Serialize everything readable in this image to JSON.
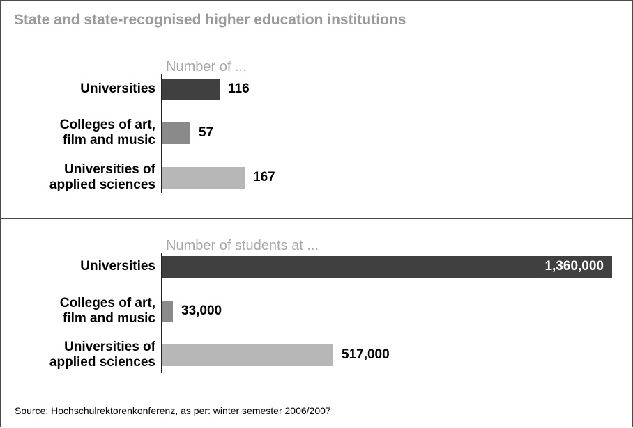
{
  "title": "State and state-recognised higher education institutions",
  "source": "Source: Hochschulrektorenkonferenz, as per: winter semester 2006/2007",
  "colors": {
    "universities": "#404040",
    "colleges": "#8a8a8a",
    "applied": "#b7b7b7",
    "subtitle": "#a8a8a8",
    "title": "#9a9a9a"
  },
  "chart_data": [
    {
      "type": "bar",
      "orientation": "horizontal",
      "title": "Number of ...",
      "categories": [
        "Universities",
        "Colleges of art,\nfilm and music",
        "Universities of\napplied sciences"
      ],
      "values": [
        116,
        57,
        167
      ],
      "value_labels": [
        "116",
        "57",
        "167"
      ],
      "xlim": [
        0,
        167
      ]
    },
    {
      "type": "bar",
      "orientation": "horizontal",
      "title": "Number of students at ...",
      "categories": [
        "Universities",
        "Colleges of art,\nfilm and music",
        "Universities of\napplied sciences"
      ],
      "values": [
        1360000,
        33000,
        517000
      ],
      "value_labels": [
        "1,360,000",
        "33,000",
        "517,000"
      ],
      "xlim": [
        0,
        1360000
      ]
    }
  ]
}
